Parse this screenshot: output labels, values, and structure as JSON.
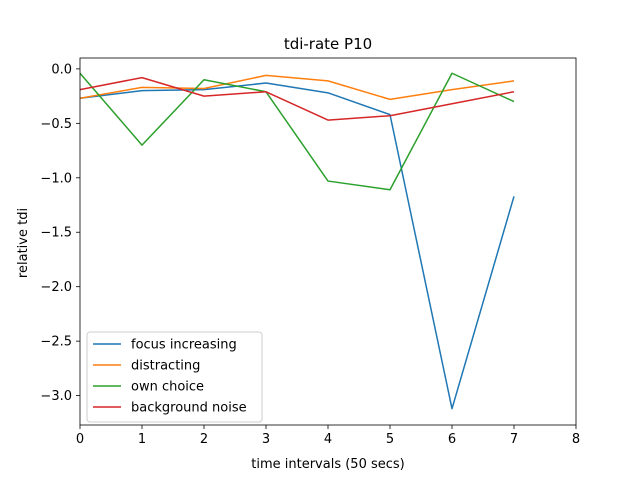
{
  "chart_data": {
    "type": "line",
    "title": "tdi-rate P10",
    "xlabel": "time intervals (50 secs)",
    "ylabel": "relative tdi",
    "x": [
      0,
      1,
      2,
      3,
      4,
      5,
      6,
      7
    ],
    "xlim": [
      0,
      8
    ],
    "ylim": [
      -3.27,
      0.1
    ],
    "xticks": [
      "0",
      "1",
      "2",
      "3",
      "4",
      "5",
      "6",
      "7",
      "8"
    ],
    "yticks": [
      "0.0",
      "−0.5",
      "−1.0",
      "−1.5",
      "−2.0",
      "−2.5",
      "−3.0"
    ],
    "ytick_values": [
      0.0,
      -0.5,
      -1.0,
      -1.5,
      -2.0,
      -2.5,
      -3.0
    ],
    "grid": false,
    "legend_position": "lower-left",
    "series": [
      {
        "name": "focus increasing",
        "color": "#1f77b4",
        "values": [
          -0.27,
          -0.2,
          -0.19,
          -0.13,
          -0.22,
          -0.42,
          -3.12,
          -1.17
        ]
      },
      {
        "name": "distracting",
        "color": "#ff7f0e",
        "values": [
          -0.27,
          -0.17,
          -0.18,
          -0.06,
          -0.11,
          -0.28,
          -0.19,
          -0.11
        ]
      },
      {
        "name": "own choice",
        "color": "#2ca02c",
        "values": [
          -0.04,
          -0.7,
          -0.1,
          -0.21,
          -1.03,
          -1.11,
          -0.04,
          -0.3
        ]
      },
      {
        "name": "background noise",
        "color": "#d62728",
        "values": [
          -0.19,
          -0.08,
          -0.25,
          -0.21,
          -0.47,
          -0.43,
          -0.32,
          -0.21
        ]
      }
    ]
  }
}
